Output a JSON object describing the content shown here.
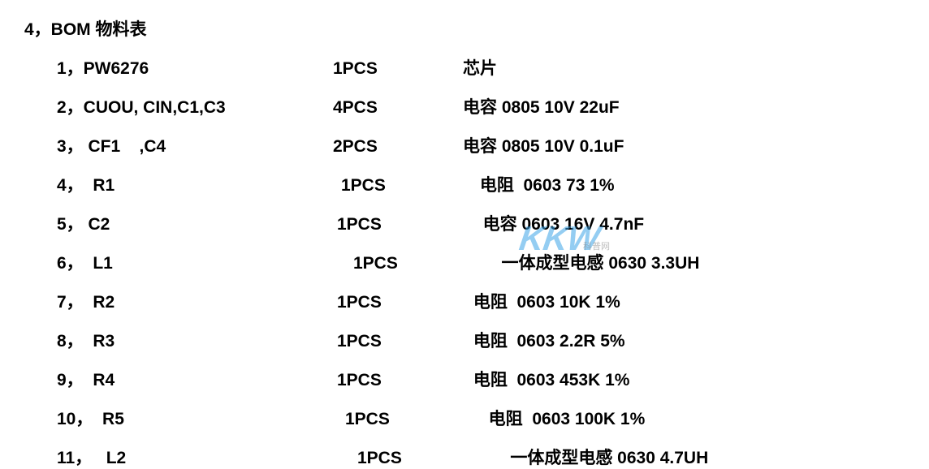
{
  "title": "4，BOM 物料表",
  "rows": [
    {
      "index": "1，",
      "designator": "PW6276",
      "desig_width": 380,
      "qty": "1PCS",
      "qty_pad": 0,
      "desc": "芯片",
      "desc_pad": 50
    },
    {
      "index": "2，",
      "designator": "CUOU, CIN,C1,C3",
      "desig_width": 380,
      "qty": "4PCS",
      "qty_pad": 0,
      "desc": "电容 0805 10V 22uF",
      "desc_pad": 50
    },
    {
      "index": "3，",
      "designator": " CF1    ,C4",
      "desig_width": 380,
      "qty": "2PCS",
      "qty_pad": 0,
      "desc": "电容 0805 10V 0.1uF",
      "desc_pad": 50
    },
    {
      "index": "4，",
      "designator": "  R1",
      "desig_width": 380,
      "qty": "1PCS",
      "qty_pad": 10,
      "desc": " 电阻  0603 73 1%",
      "desc_pad": 55
    },
    {
      "index": "5，",
      "designator": " C2",
      "desig_width": 380,
      "qty": "1PCS",
      "qty_pad": 5,
      "desc": "  电容 0603 16V 4.7nF",
      "desc_pad": 58
    },
    {
      "index": "6，",
      "designator": "  L1",
      "desig_width": 380,
      "qty": "1PCS",
      "qty_pad": 25,
      "desc": "   一体成型电感 0630 3.3UH",
      "desc_pad": 55
    },
    {
      "index": "7，",
      "designator": "  R2",
      "desig_width": 380,
      "qty": "1PCS",
      "qty_pad": 5,
      "desc": " 电阻  0603 10K 1%",
      "desc_pad": 52
    },
    {
      "index": "8，",
      "designator": "  R3",
      "desig_width": 380,
      "qty": "1PCS",
      "qty_pad": 5,
      "desc": " 电阻  0603 2.2R 5%",
      "desc_pad": 52
    },
    {
      "index": "9，",
      "designator": "  R4",
      "desig_width": 380,
      "qty": "1PCS",
      "qty_pad": 5,
      "desc": " 电阻  0603 453K 1%",
      "desc_pad": 52
    },
    {
      "index": "10，",
      "designator": "  R5",
      "desig_width": 380,
      "qty": "1PCS",
      "qty_pad": 15,
      "desc": "  电阻  0603 100K 1%",
      "desc_pad": 55
    },
    {
      "index": "11，",
      "designator": "   L2",
      "desig_width": 380,
      "qty": "1PCS",
      "qty_pad": 30,
      "desc": "    一体成型电感 0630 4.7UH",
      "desc_pad": 55
    }
  ],
  "watermark": {
    "text": "KKW",
    "sub": "科普网"
  },
  "colors": {
    "text": "#000000",
    "background": "#ffffff",
    "watermark": "#3da5e8"
  },
  "fontsize": 21
}
